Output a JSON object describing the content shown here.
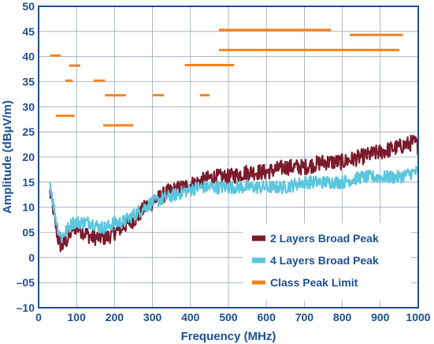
{
  "chart_data": {
    "type": "line",
    "xlabel": "Frequency (MHz)",
    "ylabel": "Amplitude (dBµV/m)",
    "xlim": [
      0,
      1000
    ],
    "ylim": [
      -10,
      50
    ],
    "x_ticks": [
      0,
      100,
      200,
      300,
      400,
      500,
      600,
      700,
      800,
      900,
      1000
    ],
    "y_ticks": [
      -10,
      -5,
      0,
      5,
      10,
      15,
      20,
      25,
      30,
      35,
      40,
      45,
      50
    ],
    "x_tick_labels": [
      "0",
      "100",
      "200",
      "300",
      "400",
      "500",
      "600",
      "700",
      "800",
      "900",
      "1000"
    ],
    "y_tick_labels": [
      "–10",
      "–05",
      "0",
      "05",
      "10",
      "15",
      "20",
      "25",
      "30",
      "35",
      "40",
      "45",
      "50"
    ],
    "grid": true,
    "legend_position": "bottom-right",
    "series": [
      {
        "name": "2 Layers Broad Peak",
        "color": "#7a1a2a",
        "x": [
          30,
          40,
          50,
          60,
          70,
          80,
          90,
          100,
          120,
          140,
          160,
          180,
          200,
          220,
          240,
          260,
          280,
          300,
          340,
          380,
          420,
          460,
          500,
          550,
          600,
          650,
          700,
          750,
          800,
          850,
          900,
          950,
          990,
          1000
        ],
        "values": [
          13,
          9,
          4,
          2,
          3,
          4,
          6,
          6,
          5,
          4,
          4,
          4,
          5,
          6,
          7,
          8,
          10,
          11,
          13,
          14,
          15,
          16,
          16,
          17,
          17,
          18,
          18,
          19,
          19,
          20,
          21,
          22,
          23,
          22
        ]
      },
      {
        "name": "4 Layers Broad Peak",
        "color": "#5bc6de",
        "x": [
          30,
          40,
          50,
          60,
          70,
          80,
          90,
          100,
          120,
          140,
          160,
          180,
          200,
          220,
          240,
          260,
          280,
          300,
          340,
          380,
          420,
          460,
          500,
          550,
          600,
          650,
          700,
          750,
          800,
          850,
          900,
          950,
          990,
          1000
        ],
        "values": [
          15,
          10,
          6,
          4,
          5,
          6,
          7,
          7,
          7,
          7,
          6,
          6,
          7,
          7,
          8,
          9,
          10,
          11,
          12,
          13,
          14,
          14,
          14,
          14,
          14,
          14,
          15,
          15,
          15,
          16,
          16,
          16,
          17,
          17
        ]
      }
    ],
    "limit_segments": {
      "name": "Class Peak Limit",
      "color": "#f5821f",
      "segments": [
        {
          "x0": 30,
          "x1": 58,
          "y": 40.2
        },
        {
          "x0": 80,
          "x1": 110,
          "y": 38.2
        },
        {
          "x0": 70,
          "x1": 90,
          "y": 35.2
        },
        {
          "x0": 145,
          "x1": 175,
          "y": 35.2
        },
        {
          "x0": 175,
          "x1": 230,
          "y": 32.3
        },
        {
          "x0": 300,
          "x1": 330,
          "y": 32.3
        },
        {
          "x0": 425,
          "x1": 450,
          "y": 32.3
        },
        {
          "x0": 45,
          "x1": 95,
          "y": 28.2
        },
        {
          "x0": 170,
          "x1": 250,
          "y": 26.3
        },
        {
          "x0": 385,
          "x1": 515,
          "y": 38.3
        },
        {
          "x0": 475,
          "x1": 770,
          "y": 45.3
        },
        {
          "x0": 820,
          "x1": 960,
          "y": 44.3
        },
        {
          "x0": 475,
          "x1": 950,
          "y": 41.3
        }
      ]
    }
  }
}
